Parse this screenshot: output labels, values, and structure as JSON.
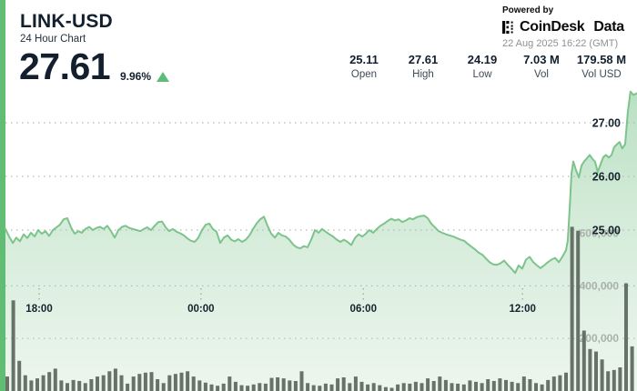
{
  "header": {
    "symbol": "LINK-USD",
    "subtitle": "24 Hour Chart",
    "price": "27.61",
    "change_pct": "9.96%",
    "powered_by": "Powered by",
    "brand": "CoinDesk",
    "brand_suffix": "Data",
    "timestamp": "22 Aug 2025 16:22 (GMT)"
  },
  "stats": [
    {
      "value": "25.11",
      "label": "Open"
    },
    {
      "value": "27.61",
      "label": "High"
    },
    {
      "value": "24.19",
      "label": "Low"
    },
    {
      "value": "7.03 M",
      "label": "Vol"
    },
    {
      "value": "179.58 M",
      "label": "Vol USD"
    }
  ],
  "colors": {
    "accent_strip": "#62bd74",
    "line": "#7cc48c",
    "area_top": "#b9e0c3",
    "area_mid": "#d3ebd8",
    "area_bottom": "#edf6ee",
    "volume_bar": "#5a645a",
    "grid_dot": "#b3b9bb",
    "up_triangle": "#5dbd78",
    "price_label": "#15222f",
    "volume_label": "#a9b2ab"
  },
  "chart_data": {
    "type": "line",
    "title": "LINK-USD 24 hour price chart with volume",
    "x_unit": "hours from chart start (chart spans 24 hours)",
    "price_axis_labels": [
      {
        "value": 27.0,
        "text": "27.00"
      },
      {
        "value": 26.0,
        "text": "26.00"
      },
      {
        "value": 25.0,
        "text": "25.00"
      }
    ],
    "volume_axis_labels": [
      {
        "value": 600000,
        "text": "600,000"
      },
      {
        "value": 400000,
        "text": "400,000"
      },
      {
        "value": 200000,
        "text": "200,000"
      }
    ],
    "volume_gridlines": [
      400000,
      200000
    ],
    "time_ticks": [
      {
        "hour": 1.28,
        "label": "18:00"
      },
      {
        "hour": 7.43,
        "label": "00:00"
      },
      {
        "hour": 13.6,
        "label": "06:00"
      },
      {
        "hour": 19.65,
        "label": "12:00"
      }
    ],
    "ylim_price": [
      24.0,
      27.8
    ],
    "ylim_volume": [
      0,
      700000
    ],
    "price_series": [
      [
        0.0,
        25.02
      ],
      [
        0.14,
        24.88
      ],
      [
        0.28,
        24.76
      ],
      [
        0.41,
        24.86
      ],
      [
        0.55,
        24.79
      ],
      [
        0.69,
        24.92
      ],
      [
        0.83,
        24.85
      ],
      [
        0.97,
        24.95
      ],
      [
        1.11,
        24.88
      ],
      [
        1.24,
        25.0
      ],
      [
        1.38,
        24.93
      ],
      [
        1.52,
        24.98
      ],
      [
        1.66,
        24.89
      ],
      [
        1.8,
        25.0
      ],
      [
        1.94,
        25.05
      ],
      [
        2.07,
        25.1
      ],
      [
        2.21,
        25.2
      ],
      [
        2.35,
        25.22
      ],
      [
        2.49,
        25.05
      ],
      [
        2.63,
        24.93
      ],
      [
        2.77,
        24.98
      ],
      [
        2.9,
        24.95
      ],
      [
        3.04,
        25.02
      ],
      [
        3.18,
        25.06
      ],
      [
        3.32,
        25.0
      ],
      [
        3.46,
        25.04
      ],
      [
        3.6,
        25.06
      ],
      [
        3.73,
        25.02
      ],
      [
        3.87,
        25.08
      ],
      [
        4.01,
        24.98
      ],
      [
        4.15,
        24.86
      ],
      [
        4.29,
        25.0
      ],
      [
        4.43,
        25.06
      ],
      [
        4.56,
        25.08
      ],
      [
        4.7,
        25.04
      ],
      [
        4.84,
        25.02
      ],
      [
        4.98,
        25.0
      ],
      [
        5.12,
        24.98
      ],
      [
        5.26,
        25.02
      ],
      [
        5.39,
        25.05
      ],
      [
        5.53,
        25.0
      ],
      [
        5.67,
        25.08
      ],
      [
        5.81,
        25.15
      ],
      [
        5.95,
        25.16
      ],
      [
        6.09,
        25.05
      ],
      [
        6.22,
        24.98
      ],
      [
        6.36,
        25.02
      ],
      [
        6.5,
        24.97
      ],
      [
        6.64,
        24.94
      ],
      [
        6.78,
        24.9
      ],
      [
        6.92,
        24.84
      ],
      [
        7.05,
        24.8
      ],
      [
        7.19,
        24.78
      ],
      [
        7.33,
        24.86
      ],
      [
        7.47,
        25.0
      ],
      [
        7.61,
        25.1
      ],
      [
        7.75,
        25.12
      ],
      [
        7.88,
        25.02
      ],
      [
        8.02,
        24.97
      ],
      [
        8.16,
        24.76
      ],
      [
        8.3,
        24.86
      ],
      [
        8.44,
        24.9
      ],
      [
        8.58,
        24.82
      ],
      [
        8.71,
        24.79
      ],
      [
        8.85,
        24.83
      ],
      [
        8.99,
        24.78
      ],
      [
        9.13,
        24.82
      ],
      [
        9.27,
        24.9
      ],
      [
        9.41,
        25.02
      ],
      [
        9.54,
        25.12
      ],
      [
        9.68,
        25.2
      ],
      [
        9.82,
        25.25
      ],
      [
        9.96,
        25.08
      ],
      [
        10.1,
        24.93
      ],
      [
        10.24,
        24.86
      ],
      [
        10.37,
        24.95
      ],
      [
        10.51,
        24.9
      ],
      [
        10.65,
        24.88
      ],
      [
        10.79,
        24.82
      ],
      [
        10.93,
        24.73
      ],
      [
        11.07,
        24.68
      ],
      [
        11.2,
        24.66
      ],
      [
        11.34,
        24.7
      ],
      [
        11.48,
        24.68
      ],
      [
        11.62,
        24.82
      ],
      [
        11.76,
        25.0
      ],
      [
        11.9,
        24.95
      ],
      [
        12.03,
        25.02
      ],
      [
        12.17,
        24.97
      ],
      [
        12.31,
        24.92
      ],
      [
        12.45,
        24.88
      ],
      [
        12.59,
        24.82
      ],
      [
        12.73,
        24.78
      ],
      [
        12.86,
        24.82
      ],
      [
        13.0,
        24.78
      ],
      [
        13.14,
        24.72
      ],
      [
        13.28,
        24.85
      ],
      [
        13.42,
        24.92
      ],
      [
        13.56,
        24.88
      ],
      [
        13.69,
        24.93
      ],
      [
        13.83,
        25.0
      ],
      [
        13.97,
        24.95
      ],
      [
        14.11,
        25.02
      ],
      [
        14.25,
        25.08
      ],
      [
        14.39,
        25.12
      ],
      [
        14.52,
        25.17
      ],
      [
        14.66,
        25.21
      ],
      [
        14.8,
        25.18
      ],
      [
        14.94,
        25.2
      ],
      [
        15.08,
        25.15
      ],
      [
        15.22,
        25.18
      ],
      [
        15.35,
        25.22
      ],
      [
        15.49,
        25.2
      ],
      [
        15.63,
        25.24
      ],
      [
        15.77,
        25.26
      ],
      [
        15.91,
        25.27
      ],
      [
        16.05,
        25.22
      ],
      [
        16.18,
        25.12
      ],
      [
        16.32,
        25.05
      ],
      [
        16.46,
        24.98
      ],
      [
        16.6,
        24.95
      ],
      [
        16.74,
        24.92
      ],
      [
        16.88,
        24.9
      ],
      [
        17.01,
        24.88
      ],
      [
        17.15,
        24.85
      ],
      [
        17.29,
        24.82
      ],
      [
        17.43,
        24.8
      ],
      [
        17.57,
        24.74
      ],
      [
        17.71,
        24.69
      ],
      [
        17.84,
        24.64
      ],
      [
        17.98,
        24.58
      ],
      [
        18.12,
        24.54
      ],
      [
        18.26,
        24.47
      ],
      [
        18.4,
        24.4
      ],
      [
        18.54,
        24.36
      ],
      [
        18.67,
        24.35
      ],
      [
        18.81,
        24.38
      ],
      [
        18.95,
        24.43
      ],
      [
        19.09,
        24.35
      ],
      [
        19.23,
        24.28
      ],
      [
        19.37,
        24.2
      ],
      [
        19.5,
        24.34
      ],
      [
        19.64,
        24.28
      ],
      [
        19.78,
        24.45
      ],
      [
        19.92,
        24.5
      ],
      [
        20.06,
        24.4
      ],
      [
        20.2,
        24.34
      ],
      [
        20.33,
        24.29
      ],
      [
        20.47,
        24.34
      ],
      [
        20.61,
        24.4
      ],
      [
        20.75,
        24.45
      ],
      [
        20.89,
        24.48
      ],
      [
        21.03,
        24.4
      ],
      [
        21.16,
        24.5
      ],
      [
        21.3,
        24.62
      ],
      [
        21.37,
        24.8
      ],
      [
        21.44,
        25.4
      ],
      [
        21.51,
        26.05
      ],
      [
        21.58,
        26.28
      ],
      [
        21.68,
        26.12
      ],
      [
        21.79,
        25.98
      ],
      [
        21.89,
        26.2
      ],
      [
        21.99,
        26.28
      ],
      [
        22.1,
        26.34
      ],
      [
        22.2,
        26.4
      ],
      [
        22.3,
        26.33
      ],
      [
        22.41,
        26.27
      ],
      [
        22.51,
        26.08
      ],
      [
        22.61,
        26.22
      ],
      [
        22.72,
        26.36
      ],
      [
        22.82,
        26.4
      ],
      [
        22.93,
        26.35
      ],
      [
        23.03,
        26.4
      ],
      [
        23.13,
        26.54
      ],
      [
        23.24,
        26.6
      ],
      [
        23.34,
        26.64
      ],
      [
        23.44,
        26.52
      ],
      [
        23.55,
        26.6
      ],
      [
        23.65,
        27.2
      ],
      [
        23.75,
        27.58
      ],
      [
        23.86,
        27.52
      ],
      [
        24.0,
        27.55
      ]
    ],
    "volume_series": {
      "start_hour": 0.07,
      "step_hours": 0.2283,
      "values": [
        55000,
        345000,
        115000,
        60000,
        40000,
        48000,
        60000,
        72000,
        85000,
        40000,
        30000,
        42000,
        38000,
        30000,
        45000,
        55000,
        60000,
        75000,
        85000,
        60000,
        28000,
        55000,
        65000,
        70000,
        72000,
        45000,
        30000,
        60000,
        65000,
        70000,
        75000,
        55000,
        40000,
        32000,
        25000,
        20000,
        28000,
        55000,
        35000,
        22000,
        20000,
        25000,
        30000,
        28000,
        50000,
        52000,
        48000,
        40000,
        38000,
        75000,
        30000,
        22000,
        20000,
        28000,
        25000,
        48000,
        52000,
        30000,
        55000,
        35000,
        25000,
        30000,
        22000,
        15000,
        12000,
        25000,
        30000,
        28000,
        35000,
        30000,
        48000,
        38000,
        55000,
        42000,
        30000,
        28000,
        25000,
        40000,
        35000,
        30000,
        45000,
        38000,
        48000,
        42000,
        35000,
        30000,
        55000,
        45000,
        30000,
        25000,
        42000,
        55000,
        60000,
        70000,
        625000,
        610000,
        230000,
        160000,
        150000,
        120000,
        75000,
        80000,
        90000,
        410000,
        170000
      ]
    }
  }
}
